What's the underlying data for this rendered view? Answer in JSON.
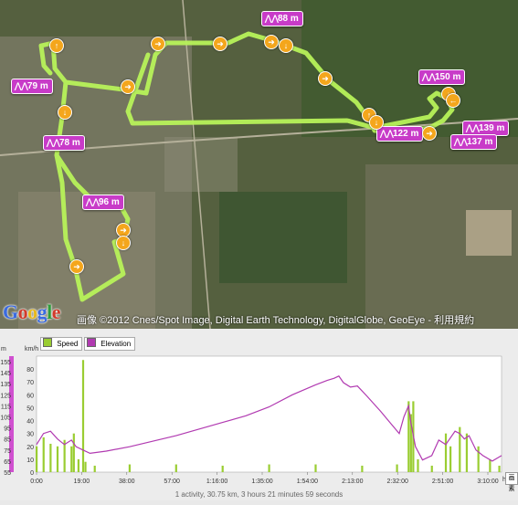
{
  "map": {
    "google_logo": "Google",
    "copyright": "画像 ©2012 Cnes/Spot Image, Digital Earth Technology, DigitalGlobe, GeoEye - 利用規約",
    "elevation_pins": [
      "88 m",
      "79 m",
      "78 m",
      "96 m",
      "150 m",
      "122 m",
      "139 m",
      "137 m"
    ],
    "direction_arrows": [
      "right",
      "right",
      "right",
      "down",
      "right",
      "up",
      "down",
      "right",
      "up",
      "down",
      "down",
      "left",
      "right",
      "right",
      "right",
      "down"
    ]
  },
  "chart": {
    "legend": {
      "speed": "Speed",
      "elevation": "Elevation"
    },
    "left_axis_unit": "m",
    "right_axis_unit": "km/h",
    "x_axis_unit": "h:m:s",
    "footer": "1 activity, 30.75 km, 3 hours 21 minutes 59 seconds",
    "edge_label": "画素"
  },
  "chart_data": {
    "type": "line",
    "x_ticks": [
      "0:00",
      "19:00",
      "38:00",
      "57:00",
      "1:16:00",
      "1:35:00",
      "1:54:00",
      "2:13:00",
      "2:32:00",
      "2:51:00",
      "3:10:00"
    ],
    "elevation_ticks": [
      55,
      65,
      75,
      85,
      95,
      105,
      115,
      125,
      135,
      145,
      155
    ],
    "speed_ticks": [
      0,
      10,
      20,
      30,
      40,
      50,
      60,
      70,
      80
    ],
    "elevation_range": [
      55,
      160
    ],
    "speed_range": [
      0,
      90
    ],
    "series": [
      {
        "name": "Speed",
        "color": "#9acd32",
        "points": [
          [
            0,
            20
          ],
          [
            3,
            27
          ],
          [
            6,
            22
          ],
          [
            9,
            20
          ],
          [
            12,
            25
          ],
          [
            15,
            20
          ],
          [
            16,
            30
          ],
          [
            18,
            10
          ],
          [
            20,
            87
          ],
          [
            21,
            8
          ],
          [
            25,
            5
          ],
          [
            40,
            6
          ],
          [
            60,
            6
          ],
          [
            80,
            5
          ],
          [
            100,
            6
          ],
          [
            120,
            6
          ],
          [
            140,
            5
          ],
          [
            155,
            6
          ],
          [
            160,
            55
          ],
          [
            161,
            45
          ],
          [
            162,
            55
          ],
          [
            164,
            10
          ],
          [
            170,
            5
          ],
          [
            176,
            30
          ],
          [
            178,
            20
          ],
          [
            182,
            35
          ],
          [
            185,
            30
          ],
          [
            190,
            20
          ],
          [
            195,
            10
          ],
          [
            199,
            5
          ]
        ]
      },
      {
        "name": "Elevation",
        "color": "#b13ab1",
        "points": [
          [
            0,
            80
          ],
          [
            3,
            90
          ],
          [
            6,
            92
          ],
          [
            9,
            85
          ],
          [
            12,
            80
          ],
          [
            15,
            84
          ],
          [
            17,
            78
          ],
          [
            20,
            75
          ],
          [
            23,
            72
          ],
          [
            30,
            74
          ],
          [
            40,
            78
          ],
          [
            60,
            88
          ],
          [
            80,
            100
          ],
          [
            90,
            106
          ],
          [
            100,
            114
          ],
          [
            110,
            125
          ],
          [
            120,
            134
          ],
          [
            125,
            138
          ],
          [
            128,
            140
          ],
          [
            130,
            142
          ],
          [
            132,
            136
          ],
          [
            135,
            132
          ],
          [
            138,
            133
          ],
          [
            142,
            124
          ],
          [
            148,
            110
          ],
          [
            152,
            100
          ],
          [
            156,
            90
          ],
          [
            158,
            105
          ],
          [
            160,
            115
          ],
          [
            161,
            100
          ],
          [
            163,
            78
          ],
          [
            166,
            66
          ],
          [
            170,
            70
          ],
          [
            173,
            84
          ],
          [
            176,
            80
          ],
          [
            180,
            92
          ],
          [
            182,
            90
          ],
          [
            184,
            85
          ],
          [
            186,
            88
          ],
          [
            189,
            75
          ],
          [
            192,
            70
          ],
          [
            196,
            65
          ],
          [
            200,
            70
          ]
        ]
      }
    ]
  }
}
